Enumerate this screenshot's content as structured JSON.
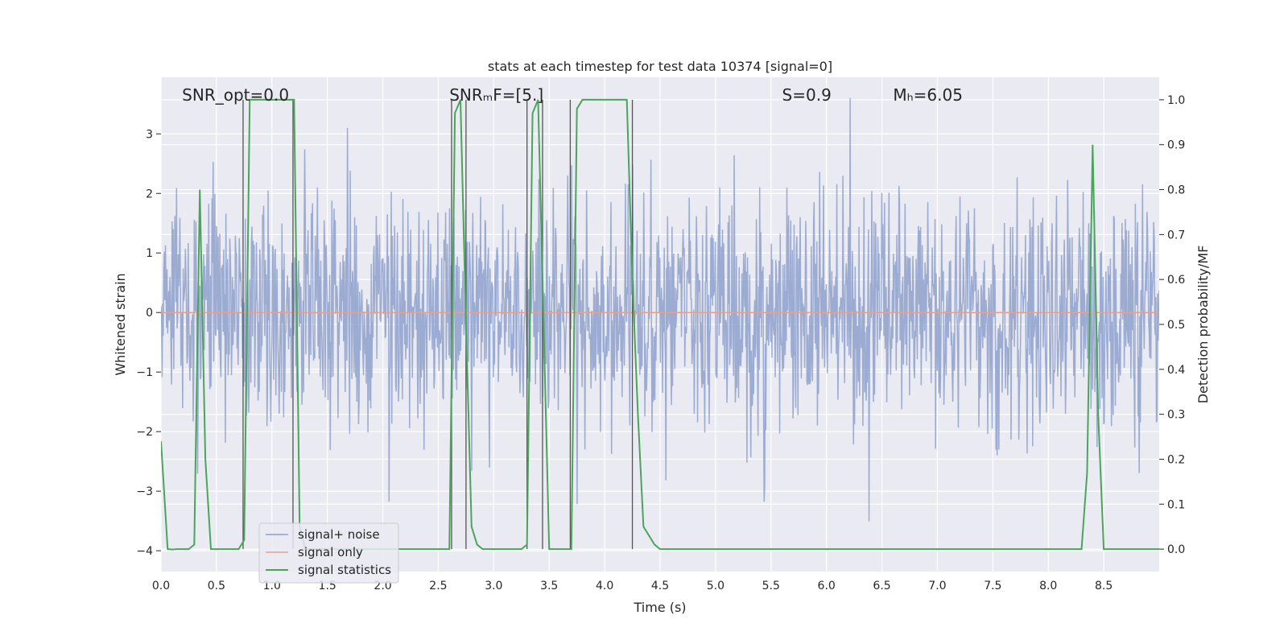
{
  "chart_data": {
    "type": "line",
    "title": "stats at each timestep for test data 10374 [signal=0]",
    "xlabel": "Time (s)",
    "ylabel": "Whitened strain",
    "y2label": "Detection probability/MF",
    "xlim": [
      0,
      9
    ],
    "ylim": [
      -4.35,
      3.95
    ],
    "y2lim": [
      -0.05,
      1.05
    ],
    "xticks": [
      0.0,
      0.5,
      1.0,
      1.5,
      2.0,
      2.5,
      3.0,
      3.5,
      4.0,
      4.5,
      5.0,
      5.5,
      6.0,
      6.5,
      7.0,
      7.5,
      8.0,
      8.5
    ],
    "xtick_labels": [
      "0.0",
      "0.5",
      "1.0",
      "1.5",
      "2.0",
      "2.5",
      "3.0",
      "3.5",
      "4.0",
      "4.5",
      "5.0",
      "5.5",
      "6.0",
      "6.5",
      "7.0",
      "7.5",
      "8.0",
      "8.5"
    ],
    "yticks": [
      3,
      2,
      1,
      0,
      -1,
      -2,
      -3,
      -4
    ],
    "ytick_labels": [
      "3",
      "2",
      "1",
      "0",
      "−1",
      "−2",
      "−3",
      "−4"
    ],
    "y2ticks": [
      1.0,
      0.9,
      0.8,
      0.7,
      0.6,
      0.5,
      0.4,
      0.3,
      0.2,
      0.1,
      0.0
    ],
    "y2tick_labels": [
      "1.0",
      "0.9",
      "0.8",
      "0.7",
      "0.6",
      "0.5",
      "0.4",
      "0.3",
      "0.2",
      "0.1",
      "0.0"
    ],
    "grid": true,
    "legend_position": "lower-left",
    "annotations": [
      {
        "text": "SNR_opt=0.0",
        "x": 0.19
      },
      {
        "text": "SNRₘF=[5.]",
        "x": 2.6
      },
      {
        "text": "S=0.9",
        "x": 5.6
      },
      {
        "text": "Mₕ=6.05",
        "x": 6.6
      }
    ],
    "annotation_y": 3.65,
    "series": [
      {
        "name": "signal+ noise",
        "color": "#8da0cb",
        "axis": "left",
        "noise": {
          "n_samples": 1800,
          "sigma": 1.0,
          "seed": 10374,
          "max_value": 3.6,
          "min_value": -4.0
        }
      },
      {
        "name": "signal only",
        "color": "#e8a186",
        "axis": "left",
        "x": [
          0.0,
          9.0
        ],
        "values": [
          0.0,
          0.0
        ]
      },
      {
        "name": "signal statistics",
        "color": "#4aa55a",
        "axis": "right",
        "x": [
          0.0,
          0.03,
          0.06,
          0.1,
          0.15,
          0.2,
          0.25,
          0.3,
          0.35,
          0.4,
          0.45,
          0.5,
          0.55,
          0.6,
          0.65,
          0.7,
          0.75,
          0.8,
          0.85,
          0.9,
          1.0,
          1.1,
          1.2,
          1.25,
          1.3,
          1.4,
          1.5,
          1.6,
          1.7,
          1.8,
          1.9,
          2.0,
          2.2,
          2.4,
          2.6,
          2.65,
          2.7,
          2.75,
          2.8,
          2.85,
          2.9,
          3.0,
          3.1,
          3.2,
          3.25,
          3.3,
          3.35,
          3.4,
          3.45,
          3.5,
          3.6,
          3.7,
          3.75,
          3.8,
          3.9,
          4.0,
          4.1,
          4.2,
          4.25,
          4.3,
          4.35,
          4.4,
          4.45,
          4.5,
          4.6,
          5.0,
          5.5,
          6.0,
          6.5,
          7.0,
          7.5,
          8.0,
          8.3,
          8.35,
          8.4,
          8.45,
          8.5,
          8.6,
          8.8,
          9.0
        ],
        "values": [
          0.24,
          0.12,
          0.0,
          -0.001,
          0.0,
          0.0,
          0.0,
          0.01,
          0.8,
          0.2,
          0.0,
          0.0,
          0.0,
          0.0,
          0.0,
          0.0,
          0.02,
          1.0,
          1.0,
          1.0,
          1.0,
          1.0,
          1.0,
          0.05,
          0.0,
          0.0,
          0.0,
          0.0,
          0.0,
          0.0,
          0.0,
          0.0,
          0.0,
          0.0,
          0.0,
          0.97,
          1.0,
          0.5,
          0.05,
          0.01,
          0.0,
          0.0,
          0.0,
          0.0,
          0.0,
          0.01,
          0.97,
          1.0,
          0.5,
          0.0,
          0.0,
          0.0,
          0.98,
          1.0,
          1.0,
          1.0,
          1.0,
          1.0,
          0.6,
          0.3,
          0.05,
          0.03,
          0.01,
          0.0,
          0.0,
          0.0,
          0.0,
          0.0,
          0.0,
          0.0,
          0.0,
          0.0,
          0.0,
          0.17,
          0.9,
          0.3,
          0.0,
          0.0,
          0.0,
          0.0
        ]
      }
    ],
    "vertical_markers": [
      0.74,
      1.19,
      2.62,
      2.75,
      3.3,
      3.44,
      3.69,
      4.25
    ]
  }
}
